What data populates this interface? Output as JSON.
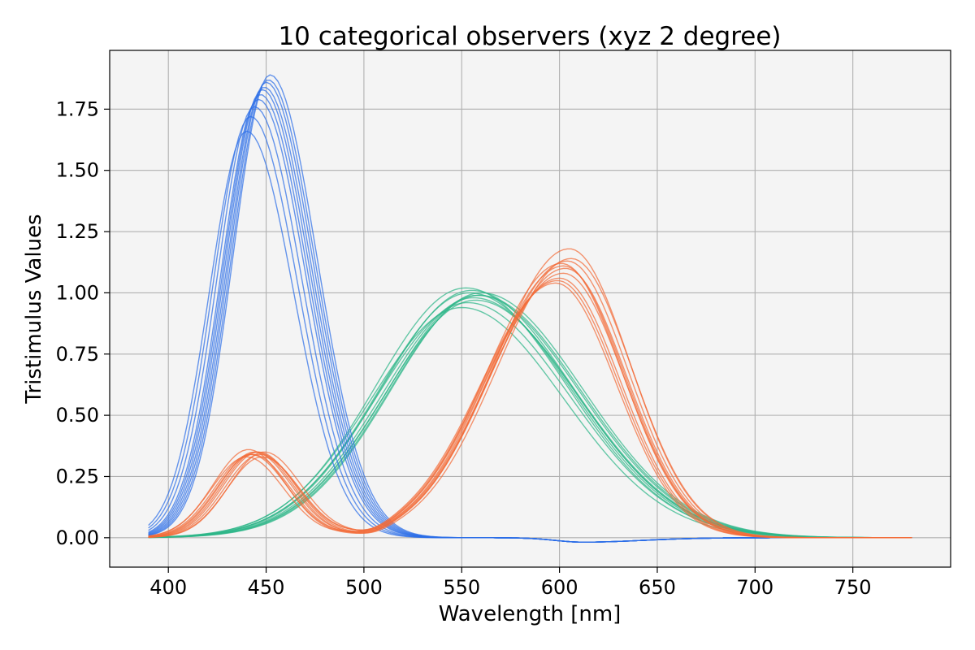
{
  "chart_data": {
    "type": "line",
    "title": "10 categorical observers (xyz 2 degree)",
    "xlabel": "Wavelength [nm]",
    "ylabel": "Tristimulus Values",
    "xlim": [
      370,
      800
    ],
    "ylim": [
      -0.12,
      1.99
    ],
    "xticks": [
      400,
      450,
      500,
      550,
      600,
      650,
      700,
      750
    ],
    "xtick_labels": [
      "400",
      "450",
      "500",
      "550",
      "600",
      "650",
      "700",
      "750"
    ],
    "yticks": [
      0.0,
      0.25,
      0.5,
      0.75,
      1.0,
      1.25,
      1.5,
      1.75
    ],
    "ytick_labels": [
      "0.00",
      "0.25",
      "0.50",
      "0.75",
      "1.00",
      "1.25",
      "1.50",
      "1.75"
    ],
    "grid": true,
    "legend": "none",
    "colors": {
      "x": "#f26b38",
      "y": "#2cb688",
      "z": "#2b6ee8",
      "background": "#f4f4f4"
    },
    "observers": 10,
    "wavelength_range": [
      390,
      780
    ],
    "series": [
      {
        "component": "x",
        "color": "#f26b38",
        "primary_peak_values": [
          1.04,
          1.06,
          1.08,
          1.1,
          1.12,
          1.13,
          1.14,
          1.18,
          1.05,
          1.11
        ],
        "primary_peak_wavelengths": [
          598,
          600,
          602,
          603,
          601,
          604,
          606,
          605,
          599,
          602
        ],
        "secondary_peak_values": [
          0.33,
          0.34,
          0.35,
          0.35,
          0.33,
          0.34,
          0.35,
          0.36,
          0.34,
          0.35
        ],
        "secondary_peak_wavelengths": [
          440,
          442,
          444,
          446,
          448,
          443,
          445,
          441,
          447,
          449
        ]
      },
      {
        "component": "y",
        "color": "#2cb688",
        "peak_values": [
          0.94,
          0.96,
          0.98,
          0.99,
          1.0,
          1.01,
          1.02,
          0.97,
          0.99,
          1.0
        ],
        "peak_wavelengths": [
          550,
          553,
          556,
          558,
          560,
          555,
          552,
          557,
          559,
          554
        ]
      },
      {
        "component": "z",
        "color": "#2b6ee8",
        "peak_values": [
          1.66,
          1.72,
          1.76,
          1.79,
          1.81,
          1.83,
          1.84,
          1.86,
          1.87,
          1.89
        ],
        "peak_wavelengths": [
          440,
          442,
          444,
          446,
          447,
          448,
          449,
          450,
          451,
          452
        ]
      }
    ]
  }
}
